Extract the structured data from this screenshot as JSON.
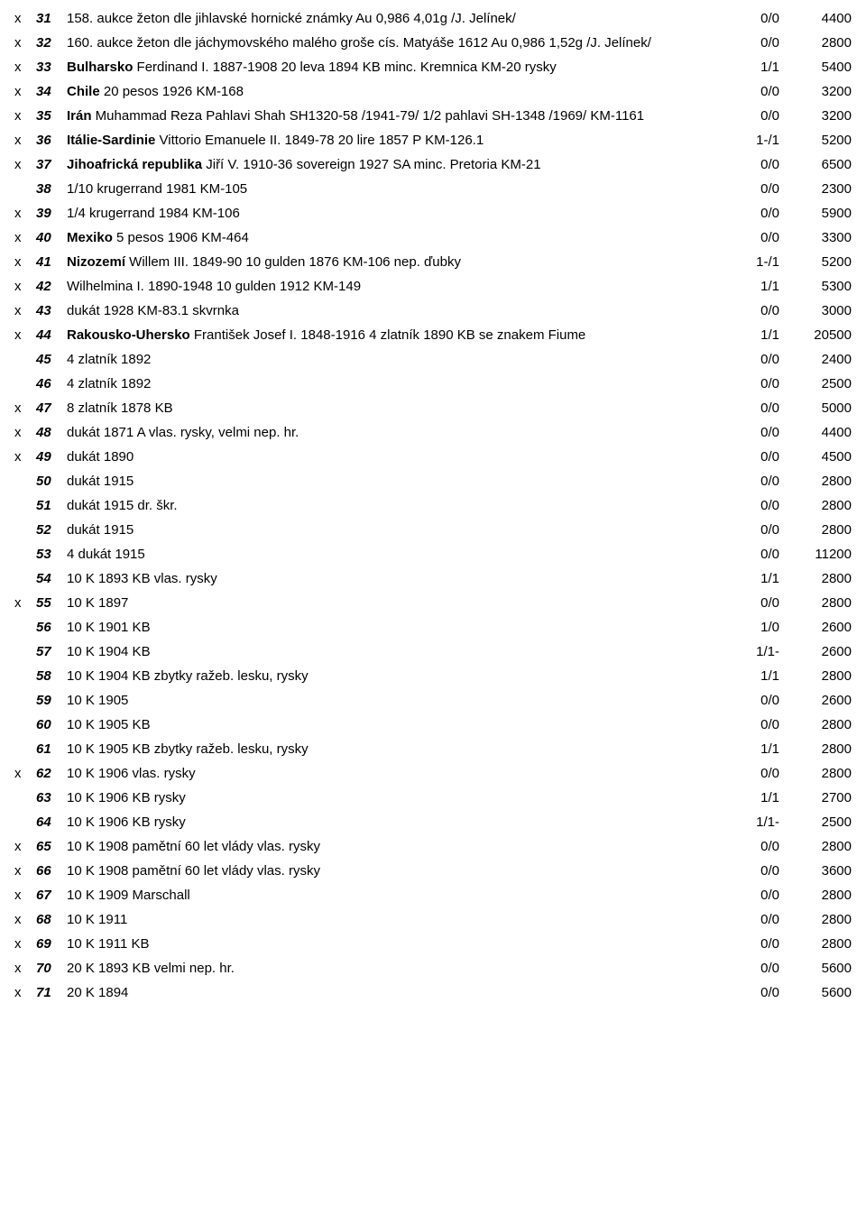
{
  "rows": [
    {
      "mark": "x",
      "num": "31",
      "desc": [
        {
          "t": "158. aukce žeton dle jihlavské hornické známky  Au 0,986  4,01g  /J. Jelínek/",
          "b": false
        }
      ],
      "grade": "0/0",
      "price": "4400"
    },
    {
      "mark": "x",
      "num": "32",
      "desc": [
        {
          "t": "160. aukce žeton dle jáchymovského malého groše cís. Matyáše 1612  Au 0,986  1,52g  /J. Jelínek/",
          "b": false
        }
      ],
      "grade": "0/0",
      "price": "2800"
    },
    {
      "mark": "x",
      "num": "33",
      "desc": [
        {
          "t": "Bulharsko",
          "b": true
        },
        {
          "t": " Ferdinand I. 1887-1908 20 leva 1894 KB minc. Kremnica  KM-20  rysky",
          "b": false
        }
      ],
      "grade": "1/1",
      "price": "5400"
    },
    {
      "mark": "x",
      "num": "34",
      "desc": [
        {
          "t": "Chile",
          "b": true
        },
        {
          "t": " 20 pesos 1926  KM-168",
          "b": false
        }
      ],
      "grade": "0/0",
      "price": "3200"
    },
    {
      "mark": "x",
      "num": "35",
      "desc": [
        {
          "t": "Irán",
          "b": true
        },
        {
          "t": " Muhammad Reza Pahlavi Shah SH1320-58 /1941-79/ 1/2 pahlavi SH-1348 /1969/  KM-1161",
          "b": false
        }
      ],
      "grade": "0/0",
      "price": "3200"
    },
    {
      "mark": "x",
      "num": "36",
      "desc": [
        {
          "t": "Itálie-Sardinie",
          "b": true
        },
        {
          "t": " Vittorio Emanuele II. 1849-78  20 lire 1857 P  KM-126.1",
          "b": false
        }
      ],
      "grade": "1-/1",
      "price": "5200"
    },
    {
      "mark": "x",
      "num": "37",
      "desc": [
        {
          "t": "Jihoafrická republika",
          "b": true
        },
        {
          "t": " Jiří V. 1910-36  sovereign 1927 SA minc. Pretoria  KM-21",
          "b": false
        }
      ],
      "grade": "0/0",
      "price": "6500"
    },
    {
      "mark": "",
      "num": "38",
      "desc": [
        {
          "t": "1/10 krugerrand 1981  KM-105",
          "b": false
        }
      ],
      "grade": "0/0",
      "price": "2300"
    },
    {
      "mark": "x",
      "num": "39",
      "desc": [
        {
          "t": "1/4 krugerrand 1984  KM-106",
          "b": false
        }
      ],
      "grade": "0/0",
      "price": "5900"
    },
    {
      "mark": "x",
      "num": "40",
      "desc": [
        {
          "t": "Mexiko",
          "b": true
        },
        {
          "t": " 5 pesos 1906  KM-464",
          "b": false
        }
      ],
      "grade": "0/0",
      "price": "3300"
    },
    {
      "mark": "x",
      "num": "41",
      "desc": [
        {
          "t": "Nizozemí",
          "b": true
        },
        {
          "t": " Willem III. 1849-90  10 gulden 1876  KM-106  nep. ďubky",
          "b": false
        }
      ],
      "grade": "1-/1",
      "price": "5200"
    },
    {
      "mark": "x",
      "num": "42",
      "desc": [
        {
          "t": "Wilhelmina I. 1890-1948  10 gulden 1912  KM-149",
          "b": false
        }
      ],
      "grade": "1/1",
      "price": "5300"
    },
    {
      "mark": "x",
      "num": "43",
      "desc": [
        {
          "t": "dukát 1928  KM-83.1  skvrnka",
          "b": false
        }
      ],
      "grade": "0/0",
      "price": "3000"
    },
    {
      "mark": "x",
      "num": "44",
      "desc": [
        {
          "t": "Rakousko-Uhersko",
          "b": true
        },
        {
          "t": " František Josef I. 1848-1916  4 zlatník 1890 KB se znakem Fiume",
          "b": false
        }
      ],
      "grade": "1/1",
      "price": "20500"
    },
    {
      "mark": "",
      "num": "45",
      "desc": [
        {
          "t": "4 zlatník 1892",
          "b": false
        }
      ],
      "grade": "0/0",
      "price": "2400"
    },
    {
      "mark": "",
      "num": "46",
      "desc": [
        {
          "t": "4 zlatník 1892",
          "b": false
        }
      ],
      "grade": "0/0",
      "price": "2500"
    },
    {
      "mark": "x",
      "num": "47",
      "desc": [
        {
          "t": "8 zlatník 1878 KB",
          "b": false
        }
      ],
      "grade": "0/0",
      "price": "5000"
    },
    {
      "mark": "x",
      "num": "48",
      "desc": [
        {
          "t": "dukát 1871 A  vlas. rysky, velmi nep. hr.",
          "b": false
        }
      ],
      "grade": "0/0",
      "price": "4400"
    },
    {
      "mark": "x",
      "num": "49",
      "desc": [
        {
          "t": "dukát 1890",
          "b": false
        }
      ],
      "grade": "0/0",
      "price": "4500"
    },
    {
      "mark": "",
      "num": "50",
      "desc": [
        {
          "t": "dukát 1915",
          "b": false
        }
      ],
      "grade": "0/0",
      "price": "2800"
    },
    {
      "mark": "",
      "num": "51",
      "desc": [
        {
          "t": "dukát 1915  dr. škr.",
          "b": false
        }
      ],
      "grade": "0/0",
      "price": "2800"
    },
    {
      "mark": "",
      "num": "52",
      "desc": [
        {
          "t": "dukát 1915",
          "b": false
        }
      ],
      "grade": "0/0",
      "price": "2800"
    },
    {
      "mark": "",
      "num": "53",
      "desc": [
        {
          "t": "4 dukát 1915",
          "b": false
        }
      ],
      "grade": "0/0",
      "price": "11200"
    },
    {
      "mark": "",
      "num": "54",
      "desc": [
        {
          "t": "10 K 1893 KB  vlas. rysky",
          "b": false
        }
      ],
      "grade": "1/1",
      "price": "2800"
    },
    {
      "mark": "x",
      "num": "55",
      "desc": [
        {
          "t": "10 K 1897",
          "b": false
        }
      ],
      "grade": "0/0",
      "price": "2800"
    },
    {
      "mark": "",
      "num": "56",
      "desc": [
        {
          "t": "10 K 1901 KB",
          "b": false
        }
      ],
      "grade": "1/0",
      "price": "2600"
    },
    {
      "mark": "",
      "num": "57",
      "desc": [
        {
          "t": "10 K 1904 KB",
          "b": false
        }
      ],
      "grade": "1/1-",
      "price": "2600"
    },
    {
      "mark": "",
      "num": "58",
      "desc": [
        {
          "t": "10 K 1904 KB  zbytky ražeb. lesku, rysky",
          "b": false
        }
      ],
      "grade": "1/1",
      "price": "2800"
    },
    {
      "mark": "",
      "num": "59",
      "desc": [
        {
          "t": "10 K 1905",
          "b": false
        }
      ],
      "grade": "0/0",
      "price": "2600"
    },
    {
      "mark": "",
      "num": "60",
      "desc": [
        {
          "t": "10 K 1905 KB",
          "b": false
        }
      ],
      "grade": "0/0",
      "price": "2800"
    },
    {
      "mark": "",
      "num": "61",
      "desc": [
        {
          "t": "10 K 1905 KB  zbytky ražeb. lesku, rysky",
          "b": false
        }
      ],
      "grade": "1/1",
      "price": "2800"
    },
    {
      "mark": "x",
      "num": "62",
      "desc": [
        {
          "t": "10 K 1906  vlas. rysky",
          "b": false
        }
      ],
      "grade": "0/0",
      "price": "2800"
    },
    {
      "mark": "",
      "num": "63",
      "desc": [
        {
          "t": "10 K 1906 KB  rysky",
          "b": false
        }
      ],
      "grade": "1/1",
      "price": "2700"
    },
    {
      "mark": "",
      "num": "64",
      "desc": [
        {
          "t": "10 K 1906 KB  rysky",
          "b": false
        }
      ],
      "grade": "1/1-",
      "price": "2500"
    },
    {
      "mark": "x",
      "num": "65",
      "desc": [
        {
          "t": "10 K 1908 pamětní 60 let vlády  vlas. rysky",
          "b": false
        }
      ],
      "grade": "0/0",
      "price": "2800"
    },
    {
      "mark": "x",
      "num": "66",
      "desc": [
        {
          "t": "10 K 1908 pamětní 60 let vlády  vlas. rysky",
          "b": false
        }
      ],
      "grade": "0/0",
      "price": "3600"
    },
    {
      "mark": "x",
      "num": "67",
      "desc": [
        {
          "t": "10 K 1909 Marschall",
          "b": false
        }
      ],
      "grade": "0/0",
      "price": "2800"
    },
    {
      "mark": "x",
      "num": "68",
      "desc": [
        {
          "t": "10 K 1911",
          "b": false
        }
      ],
      "grade": "0/0",
      "price": "2800"
    },
    {
      "mark": "x",
      "num": "69",
      "desc": [
        {
          "t": "10 K 1911 KB",
          "b": false
        }
      ],
      "grade": "0/0",
      "price": "2800"
    },
    {
      "mark": "x",
      "num": "70",
      "desc": [
        {
          "t": "20 K 1893 KB  velmi nep. hr.",
          "b": false
        }
      ],
      "grade": "0/0",
      "price": "5600"
    },
    {
      "mark": "x",
      "num": "71",
      "desc": [
        {
          "t": "20 K 1894",
          "b": false
        }
      ],
      "grade": "0/0",
      "price": "5600"
    }
  ]
}
